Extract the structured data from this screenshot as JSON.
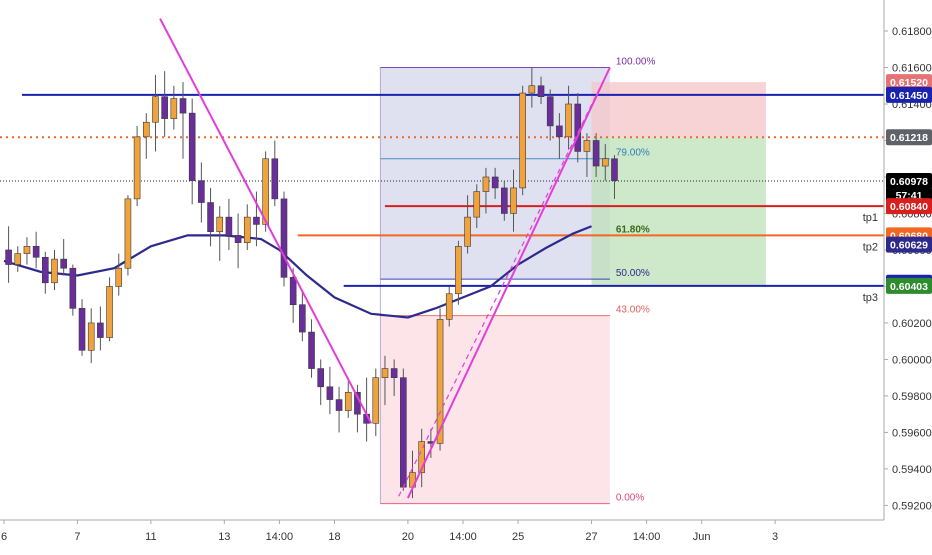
{
  "chart_data": {
    "type": "candlestick",
    "title": "",
    "xlabel": "",
    "ylabel": "",
    "ylim": [
      0.5912,
      0.6197
    ],
    "grid": false,
    "y_ticks": [
      "0.61800",
      "0.61600",
      "0.61400",
      "0.61200",
      "0.61000",
      "0.60800",
      "0.60600",
      "0.60400",
      "0.60200",
      "0.60000",
      "0.59800",
      "0.59600",
      "0.59400",
      "0.59200"
    ],
    "y_tick_values": [
      0.618,
      0.616,
      0.614,
      0.612,
      0.61,
      0.608,
      0.606,
      0.604,
      0.602,
      0.6,
      0.598,
      0.596,
      0.594,
      0.592
    ],
    "x_ticks": [
      "6",
      "7",
      "11",
      "13",
      "14:00",
      "18",
      "20",
      "14:00",
      "25",
      "27",
      "14:00",
      "Jun",
      "3"
    ],
    "x_tick_index": [
      0,
      8,
      16,
      24,
      30,
      36,
      44,
      50,
      56,
      64,
      70,
      76,
      84
    ],
    "bar_count": 90,
    "colors": {
      "up": "#f0a23c",
      "down": "#6a2e9c",
      "moving_average": "#2e2a8c",
      "trendline": "#e23fd8",
      "fib_zone": "#c9cde8",
      "stop_zone": "#f5c4c8",
      "target_zone": "#bde0b8",
      "lower_zone": "#fde1e5",
      "horizontal": "#1a23b0",
      "dotted_level": "#f26722",
      "tp1_line": "#d91e1e",
      "tp2_line": "#f26722",
      "tp3_line": "#1a23b0"
    },
    "candles": [
      [
        0.606,
        0.6073,
        0.6042,
        0.6052
      ],
      [
        0.6052,
        0.6062,
        0.6048,
        0.6058
      ],
      [
        0.6058,
        0.6067,
        0.6052,
        0.6062
      ],
      [
        0.6062,
        0.607,
        0.605,
        0.6056
      ],
      [
        0.6056,
        0.6059,
        0.6036,
        0.6042
      ],
      [
        0.6042,
        0.606,
        0.6038,
        0.6055
      ],
      [
        0.6055,
        0.6066,
        0.6046,
        0.605
      ],
      [
        0.605,
        0.6052,
        0.6024,
        0.6028
      ],
      [
        0.6028,
        0.6033,
        0.6002,
        0.6005
      ],
      [
        0.6005,
        0.6028,
        0.5998,
        0.602
      ],
      [
        0.602,
        0.6029,
        0.6005,
        0.6012
      ],
      [
        0.6012,
        0.6045,
        0.601,
        0.604
      ],
      [
        0.604,
        0.6058,
        0.6035,
        0.605
      ],
      [
        0.605,
        0.609,
        0.6046,
        0.6088
      ],
      [
        0.6088,
        0.6128,
        0.6084,
        0.6122
      ],
      [
        0.6122,
        0.6135,
        0.611,
        0.613
      ],
      [
        0.613,
        0.6156,
        0.6114,
        0.6144
      ],
      [
        0.6144,
        0.6158,
        0.6122,
        0.6132
      ],
      [
        0.6132,
        0.615,
        0.6126,
        0.6143
      ],
      [
        0.6143,
        0.6152,
        0.611,
        0.6135
      ],
      [
        0.6135,
        0.6143,
        0.6085,
        0.6098
      ],
      [
        0.6098,
        0.6108,
        0.6075,
        0.6086
      ],
      [
        0.6086,
        0.6094,
        0.6062,
        0.607
      ],
      [
        0.607,
        0.6084,
        0.6054,
        0.6078
      ],
      [
        0.6078,
        0.6088,
        0.606,
        0.6068
      ],
      [
        0.6068,
        0.608,
        0.605,
        0.6064
      ],
      [
        0.6064,
        0.6085,
        0.606,
        0.6078
      ],
      [
        0.6078,
        0.6092,
        0.6062,
        0.6074
      ],
      [
        0.6074,
        0.6114,
        0.607,
        0.611
      ],
      [
        0.611,
        0.612,
        0.6084,
        0.6088
      ],
      [
        0.6088,
        0.6092,
        0.604,
        0.6045
      ],
      [
        0.6045,
        0.605,
        0.602,
        0.603
      ],
      [
        0.603,
        0.6038,
        0.601,
        0.6015
      ],
      [
        0.6015,
        0.6022,
        0.599,
        0.5995
      ],
      [
        0.5995,
        0.6,
        0.5975,
        0.5985
      ],
      [
        0.5985,
        0.5996,
        0.597,
        0.5978
      ],
      [
        0.5978,
        0.5985,
        0.596,
        0.5972
      ],
      [
        0.5972,
        0.5988,
        0.5968,
        0.5982
      ],
      [
        0.5982,
        0.5986,
        0.596,
        0.597
      ],
      [
        0.597,
        0.599,
        0.5955,
        0.5965
      ],
      [
        0.5965,
        0.5995,
        0.5958,
        0.599
      ],
      [
        0.599,
        0.6002,
        0.5975,
        0.5995
      ],
      [
        0.5995,
        0.6,
        0.598,
        0.599
      ],
      [
        0.599,
        0.5995,
        0.5928,
        0.593
      ],
      [
        0.593,
        0.595,
        0.5924,
        0.5938
      ],
      [
        0.5938,
        0.5962,
        0.593,
        0.5955
      ],
      [
        0.5955,
        0.5962,
        0.5946,
        0.5954
      ],
      [
        0.5954,
        0.6028,
        0.595,
        0.6022
      ],
      [
        0.6022,
        0.604,
        0.6018,
        0.6036
      ],
      [
        0.6036,
        0.6065,
        0.603,
        0.6062
      ],
      [
        0.6062,
        0.609,
        0.6058,
        0.6078
      ],
      [
        0.6078,
        0.6096,
        0.6072,
        0.6092
      ],
      [
        0.6092,
        0.6105,
        0.608,
        0.61
      ],
      [
        0.61,
        0.6105,
        0.6088,
        0.6094
      ],
      [
        0.6094,
        0.6098,
        0.6076,
        0.608
      ],
      [
        0.608,
        0.6104,
        0.607,
        0.6094
      ],
      [
        0.6094,
        0.615,
        0.609,
        0.6146
      ],
      [
        0.6146,
        0.616,
        0.6138,
        0.615
      ],
      [
        0.615,
        0.6155,
        0.614,
        0.6144
      ],
      [
        0.6144,
        0.6148,
        0.612,
        0.6128
      ],
      [
        0.6128,
        0.6135,
        0.611,
        0.6122
      ],
      [
        0.6122,
        0.615,
        0.6115,
        0.614
      ],
      [
        0.614,
        0.6146,
        0.6108,
        0.6114
      ],
      [
        0.6114,
        0.6124,
        0.61,
        0.612
      ],
      [
        0.612,
        0.6124,
        0.61,
        0.6106
      ],
      [
        0.6106,
        0.6118,
        0.6098,
        0.611
      ],
      [
        0.611,
        0.6112,
        0.6088,
        0.6098
      ]
    ],
    "moving_average": [
      [
        0,
        0.6054
      ],
      [
        4,
        0.6048
      ],
      [
        8,
        0.6046
      ],
      [
        12,
        0.605
      ],
      [
        16,
        0.6062
      ],
      [
        20,
        0.6068
      ],
      [
        24,
        0.6068
      ],
      [
        28,
        0.6066
      ],
      [
        30,
        0.606
      ],
      [
        33,
        0.6046
      ],
      [
        36,
        0.6034
      ],
      [
        40,
        0.6025
      ],
      [
        44,
        0.6023
      ],
      [
        47,
        0.6028
      ],
      [
        50,
        0.6034
      ],
      [
        53,
        0.604
      ],
      [
        56,
        0.6052
      ],
      [
        59,
        0.6061
      ],
      [
        62,
        0.6069
      ],
      [
        64,
        0.6073
      ]
    ],
    "trendlines": [
      {
        "from": [
          17,
          0.61868
        ],
        "to": [
          40,
          0.5965
        ]
      },
      {
        "from": [
          44,
          0.5924
        ],
        "to": [
          66,
          0.616
        ]
      },
      {
        "from": [
          43,
          0.5925
        ],
        "to": [
          66,
          0.616
        ],
        "dashed": true
      }
    ],
    "horizontal_levels": [
      {
        "value": 0.6145,
        "style": "solid"
      },
      {
        "value": 0.61218,
        "style": "dotted"
      },
      {
        "value": 0.60978,
        "style": "black-dotted"
      }
    ],
    "fibonacci": {
      "levels": [
        {
          "label": "100.00%",
          "value": 0.616
        },
        {
          "label": "79.00%",
          "value": 0.611
        },
        {
          "label": "61.80%",
          "value": 0.6068
        },
        {
          "label": "50.00%",
          "value": 0.6044
        },
        {
          "label": "43.00%",
          "value": 0.6024
        },
        {
          "label": "0.00%",
          "value": 0.5921
        }
      ],
      "x_start": 41,
      "x_end": 66
    },
    "position": {
      "x_start": 64,
      "x_end": 83,
      "stop": 0.6152,
      "entry": 0.61218,
      "targets": [
        {
          "label": "tp1",
          "value": 0.6084
        },
        {
          "label": "tp2",
          "value": 0.6068
        },
        {
          "label": "tp3",
          "value": 0.60403
        }
      ]
    },
    "price_labels": [
      {
        "text": "0.61520",
        "value": 0.6152,
        "bg": "#e57373",
        "fg": "#ffffff"
      },
      {
        "text": "0.61450",
        "value": 0.6145,
        "bg": "#1a23b0",
        "fg": "#ffffff"
      },
      {
        "text": "0.61218",
        "value": 0.61218,
        "bg": "#5f6368",
        "fg": "#ffffff"
      },
      {
        "text": "0.60978",
        "value": 0.60978,
        "bg": "#000000",
        "fg": "#ffffff"
      },
      {
        "text": "57:41",
        "value": 0.609,
        "bg": "#000000",
        "fg": "#ffffff"
      },
      {
        "text": "0.60840",
        "value": 0.6084,
        "bg": "#d91e1e",
        "fg": "#ffffff"
      },
      {
        "text": "0.60680",
        "value": 0.6068,
        "bg": "#f26722",
        "fg": "#ffffff"
      },
      {
        "text": "0.60629",
        "value": 0.60629,
        "bg": "#2e2a8c",
        "fg": "#ffffff"
      },
      {
        "text": "0.60420",
        "value": 0.6042,
        "bg": "#1a23b0",
        "fg": "#ffffff"
      },
      {
        "text": "0.60403",
        "value": 0.60403,
        "bg": "#2e8b2e",
        "fg": "#ffffff"
      }
    ]
  }
}
